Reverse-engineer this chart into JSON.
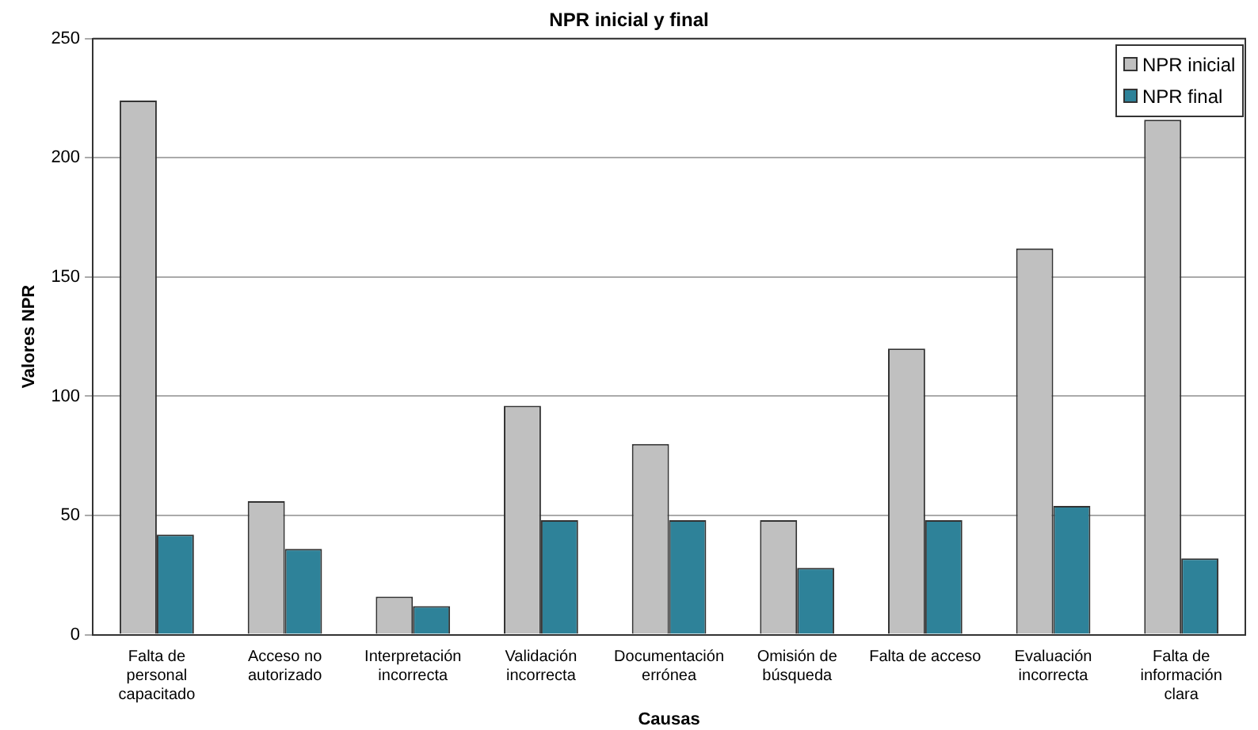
{
  "chart_data": {
    "type": "bar",
    "title": "NPR inicial y final",
    "xlabel": "Causas",
    "ylabel": "Valores NPR",
    "categories": [
      "Falta de personal capacitado",
      "Acceso no autorizado",
      "Interpretación incorrecta",
      "Validación incorrecta",
      "Documentación errónea",
      "Omisión de búsqueda",
      "Falta de acceso",
      "Evaluación incorrecta",
      "Falta de información clara"
    ],
    "series": [
      {
        "name": "NPR inicial",
        "color": "#c0c0c0",
        "values": [
          224,
          56,
          16,
          96,
          80,
          48,
          120,
          162,
          216
        ]
      },
      {
        "name": "NPR final",
        "color": "#2e8299",
        "values": [
          42,
          36,
          12,
          48,
          48,
          28,
          48,
          54,
          32
        ]
      }
    ],
    "ylim": [
      0,
      250
    ],
    "yticks": [
      0,
      50,
      100,
      150,
      200,
      250
    ],
    "grid": "y",
    "legend": "top right"
  }
}
